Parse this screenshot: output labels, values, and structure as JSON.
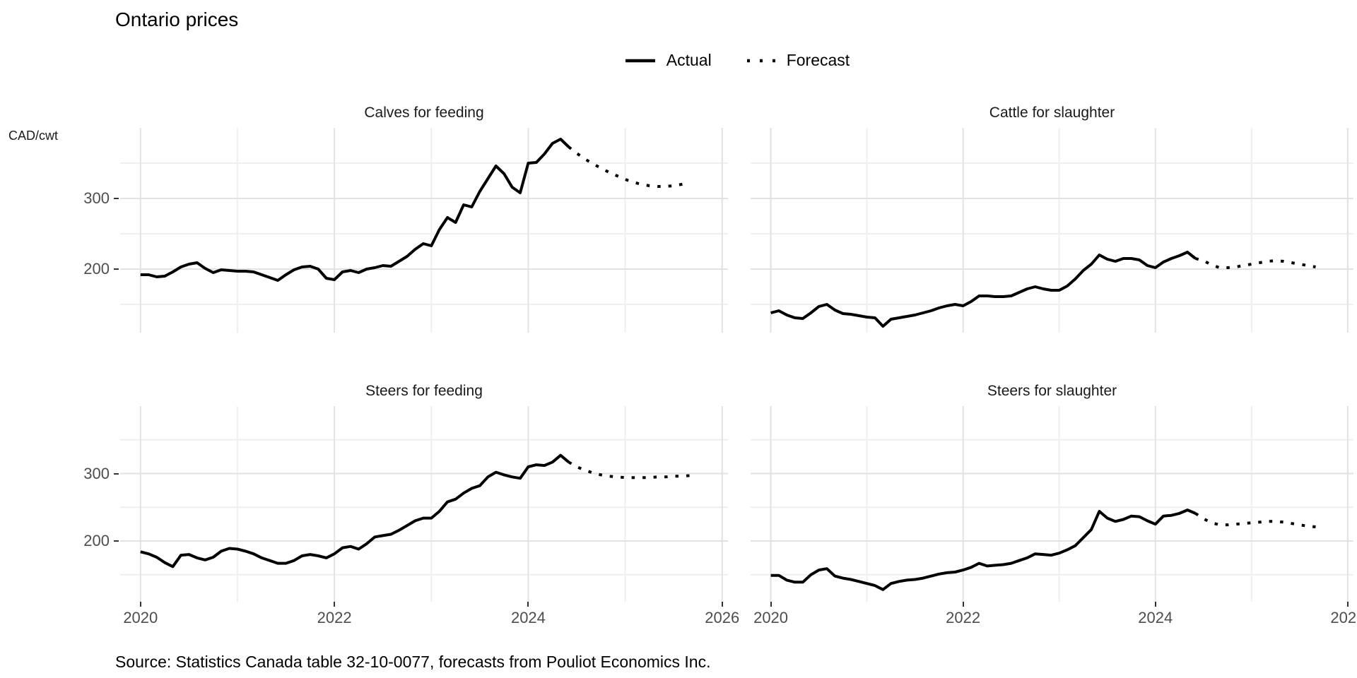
{
  "title": "Ontario prices",
  "legend": {
    "actual_label": "Actual",
    "forecast_label": "Forecast"
  },
  "caption": "Source: Statistics Canada table 32-10-0077, forecasts from Pouliot Economics Inc.",
  "chart_data": {
    "type": "line",
    "title": "Ontario prices",
    "unit_label": "CAD/cwt",
    "line_color": "#000000",
    "grid_major_color": "#e2e2e2",
    "grid_minor_color": "#efefef",
    "tick_label_color": "#4d4d4d",
    "x_domain": [
      2019.79,
      2026.06
    ],
    "y_domain": [
      110,
      400
    ],
    "x_major_ticks": [
      2020,
      2022,
      2024,
      2026
    ],
    "x_minor_ticks": [
      2021,
      2023,
      2025
    ],
    "y_major_ticks": [
      200,
      300
    ],
    "y_minor_ticks": [
      150,
      250,
      350
    ],
    "actual_start_year": 2020.0,
    "forecast_start_year": 2024.5,
    "legend_entries": [
      {
        "label": "Actual",
        "style": "solid"
      },
      {
        "label": "Forecast",
        "style": "dotted"
      }
    ],
    "panels": [
      {
        "id": "calves-feeding",
        "title": "Calves for feeding",
        "row": 0,
        "col": 0,
        "actual": [
          192,
          192,
          189,
          190,
          196,
          203,
          207,
          209,
          201,
          195,
          199,
          198,
          197,
          197,
          196,
          192,
          188,
          184,
          192,
          199,
          203,
          204,
          200,
          187,
          185,
          196,
          198,
          195,
          200,
          202,
          205,
          204,
          211,
          218,
          228,
          236,
          233,
          256,
          273,
          266,
          291,
          288,
          310,
          328,
          346,
          335,
          316,
          308,
          350,
          351,
          363,
          378,
          384,
          373
        ],
        "forecast": [
          364,
          356,
          349,
          343,
          337,
          332,
          327,
          323,
          320,
          318,
          317,
          317,
          318,
          320,
          322
        ]
      },
      {
        "id": "cattle-slaughter",
        "title": "Cattle for slaughter",
        "row": 0,
        "col": 1,
        "actual": [
          138,
          141,
          135,
          131,
          130,
          138,
          147,
          150,
          142,
          137,
          136,
          134,
          132,
          131,
          119,
          129,
          131,
          133,
          135,
          138,
          141,
          145,
          148,
          150,
          148,
          154,
          162,
          162,
          161,
          161,
          162,
          167,
          172,
          175,
          172,
          170,
          170,
          176,
          186,
          198,
          207,
          220,
          214,
          211,
          215,
          215,
          213,
          205,
          202,
          210,
          215,
          219,
          224,
          215
        ],
        "forecast": [
          212,
          206,
          202,
          202,
          203,
          205,
          207,
          209,
          211,
          212,
          211,
          209,
          207,
          205,
          203
        ]
      },
      {
        "id": "steers-feeding",
        "title": "Steers for feeding",
        "row": 1,
        "col": 0,
        "actual": [
          184,
          181,
          176,
          168,
          162,
          179,
          180,
          175,
          172,
          176,
          185,
          189,
          188,
          185,
          181,
          175,
          171,
          167,
          167,
          171,
          178,
          180,
          178,
          175,
          181,
          190,
          192,
          188,
          196,
          206,
          208,
          210,
          216,
          223,
          230,
          234,
          234,
          244,
          258,
          262,
          271,
          278,
          282,
          295,
          302,
          298,
          295,
          293,
          310,
          313,
          312,
          317,
          327,
          317
        ],
        "forecast": [
          310,
          305,
          301,
          298,
          296,
          295,
          294,
          294,
          294,
          294,
          295,
          295,
          296,
          296,
          297
        ]
      },
      {
        "id": "steers-slaughter",
        "title": "Steers for slaughter",
        "row": 1,
        "col": 1,
        "actual": [
          149,
          149,
          142,
          139,
          139,
          150,
          157,
          159,
          148,
          145,
          143,
          140,
          137,
          134,
          128,
          137,
          140,
          142,
          143,
          145,
          148,
          151,
          153,
          154,
          157,
          161,
          167,
          163,
          164,
          165,
          167,
          171,
          175,
          181,
          180,
          179,
          182,
          187,
          193,
          205,
          217,
          244,
          234,
          229,
          232,
          237,
          236,
          230,
          225,
          237,
          238,
          241,
          246,
          241
        ],
        "forecast": [
          233,
          227,
          224,
          224,
          225,
          226,
          227,
          228,
          229,
          229,
          228,
          226,
          224,
          222,
          221
        ]
      }
    ]
  }
}
